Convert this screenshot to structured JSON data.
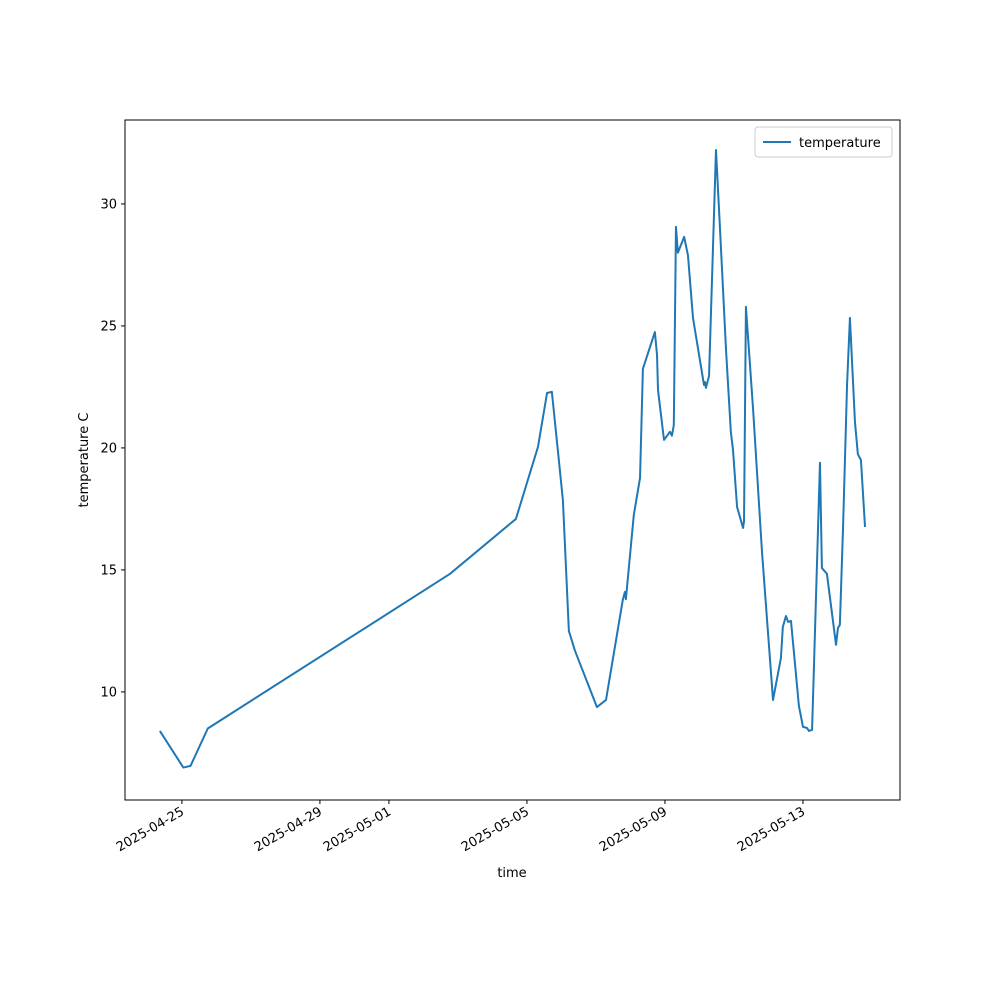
{
  "chart_data": {
    "type": "line",
    "x_label": "time",
    "y_label": "temperature C",
    "xlim": [
      "2025-04-23 08:25",
      "2025-05-15 19:30"
    ],
    "xticks": [
      "2025-04-25",
      "2025-04-29",
      "2025-05-01",
      "2025-05-05",
      "2025-05-09",
      "2025-05-13"
    ],
    "ylim": [
      5.57,
      33.44
    ],
    "yticks": [
      10,
      15,
      20,
      25,
      30
    ],
    "grid": false,
    "legend": "upper right",
    "x": [
      "2025-04-24 08:40",
      "2025-04-25 01:00",
      "2025-04-25 06:00",
      "2025-04-25 18:00",
      "2025-05-02 18:30",
      "2025-05-04 16:20",
      "2025-05-05 07:40",
      "2025-05-05 14:00",
      "2025-05-05 17:20",
      "2025-05-05 21:30",
      "2025-05-06 01:00",
      "2025-05-06 05:10",
      "2025-05-06 09:20",
      "2025-05-07 00:40",
      "2025-05-07 07:00",
      "2025-05-07 18:40",
      "2025-05-07 20:10",
      "2025-05-07 20:50",
      "2025-05-08 02:20",
      "2025-05-08 06:40",
      "2025-05-08 08:40",
      "2025-05-08 17:00",
      "2025-05-08 18:30",
      "2025-05-08 19:10",
      "2025-05-08 23:20",
      "2025-05-09 03:30",
      "2025-05-09 04:50",
      "2025-05-09 06:10",
      "2025-05-09 07:40",
      "2025-05-09 09:00",
      "2025-05-09 13:20",
      "2025-05-09 16:00",
      "2025-05-09 19:30",
      "2025-05-10 03:10",
      "2025-05-10 03:50",
      "2025-05-10 04:30",
      "2025-05-10 06:40",
      "2025-05-10 11:30",
      "2025-05-10 14:20",
      "2025-05-10 18:30",
      "2025-05-10 21:50",
      "2025-05-10 23:20",
      "2025-05-11 02:10",
      "2025-05-11 06:20",
      "2025-05-11 07:00",
      "2025-05-11 08:20",
      "2025-05-11 13:20",
      "2025-05-11 19:30",
      "2025-05-12 03:10",
      "2025-05-12 08:40",
      "2025-05-12 10:00",
      "2025-05-12 12:10",
      "2025-05-12 13:40",
      "2025-05-12 15:40",
      "2025-05-12 21:10",
      "2025-05-13 00:00",
      "2025-05-13 02:50",
      "2025-05-13 04:10",
      "2025-05-13 06:20",
      "2025-05-13 11:50",
      "2025-05-13 13:10",
      "2025-05-13 16:40",
      "2025-05-13 23:00",
      "2025-05-14 00:20",
      "2025-05-14 01:40",
      "2025-05-14 03:50",
      "2025-05-14 06:40",
      "2025-05-14 08:40",
      "2025-05-14 12:10",
      "2025-05-14 14:10",
      "2025-05-14 16:20",
      "2025-05-14 19:10"
    ],
    "series": [
      {
        "name": "temperature",
        "color": "#1f77b4",
        "values": [
          8.4,
          6.9,
          6.97,
          8.5,
          14.84,
          17.09,
          20.04,
          22.25,
          22.3,
          19.9,
          17.87,
          12.5,
          11.7,
          9.38,
          9.67,
          13.77,
          14.1,
          13.8,
          17.25,
          18.77,
          23.24,
          24.75,
          23.8,
          22.38,
          20.33,
          20.66,
          20.5,
          20.94,
          29.06,
          28.0,
          28.65,
          27.9,
          25.33,
          22.58,
          22.7,
          22.46,
          22.95,
          32.21,
          28.93,
          24.0,
          20.66,
          19.92,
          17.58,
          16.72,
          17.0,
          25.78,
          21.56,
          15.74,
          9.67,
          11.39,
          12.66,
          13.11,
          12.87,
          12.91,
          9.43,
          8.57,
          8.52,
          8.4,
          8.44,
          19.39,
          15.08,
          14.84,
          11.93,
          12.62,
          12.75,
          16.64,
          22.58,
          25.33,
          21.07,
          19.75,
          19.5,
          16.76
        ]
      }
    ]
  }
}
